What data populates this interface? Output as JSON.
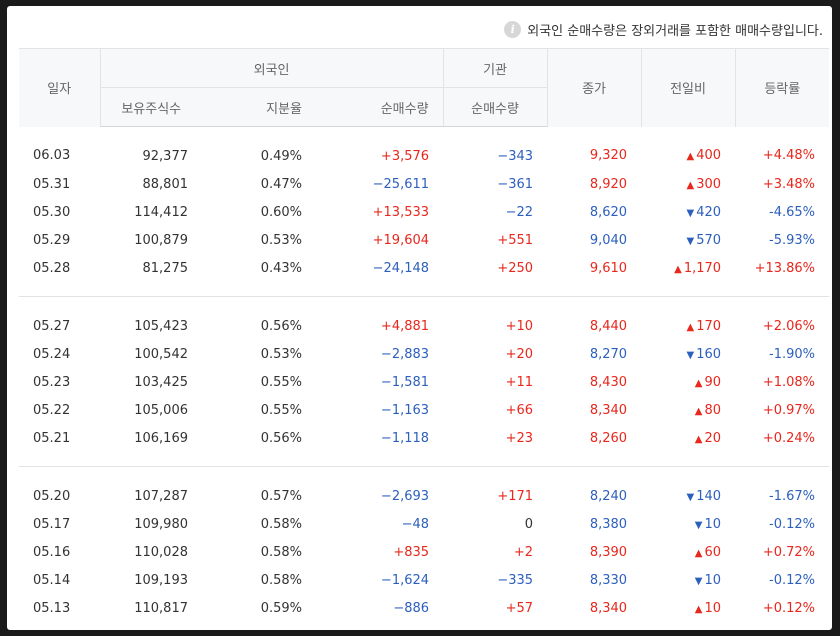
{
  "notice": {
    "icon": "info-icon",
    "text": "외국인 순매수량은 장외거래를 포함한 매매수량입니다."
  },
  "headers": {
    "date": "일자",
    "foreign": "외국인",
    "institution": "기관",
    "close": "종가",
    "change": "전일비",
    "rate": "등락률",
    "holdings": "보유주식수",
    "ratio": "지분율",
    "foreign_net": "순매수량",
    "inst_net": "순매수량"
  },
  "colors": {
    "up": "#e8271d",
    "down": "#2d5fbd"
  },
  "groups": [
    [
      {
        "date": "06.03",
        "holdings": "92,377",
        "ratio": "0.49%",
        "foreign_net": "+3,576",
        "inst_net": "−343",
        "close": "9,320",
        "change": "400",
        "dir": "up",
        "rate": "+4.48%"
      },
      {
        "date": "05.31",
        "holdings": "88,801",
        "ratio": "0.47%",
        "foreign_net": "−25,611",
        "inst_net": "−361",
        "close": "8,920",
        "change": "300",
        "dir": "up",
        "rate": "+3.48%"
      },
      {
        "date": "05.30",
        "holdings": "114,412",
        "ratio": "0.60%",
        "foreign_net": "+13,533",
        "inst_net": "−22",
        "close": "8,620",
        "change": "420",
        "dir": "down",
        "rate": "-4.65%"
      },
      {
        "date": "05.29",
        "holdings": "100,879",
        "ratio": "0.53%",
        "foreign_net": "+19,604",
        "inst_net": "+551",
        "close": "9,040",
        "change": "570",
        "dir": "down",
        "rate": "-5.93%"
      },
      {
        "date": "05.28",
        "holdings": "81,275",
        "ratio": "0.43%",
        "foreign_net": "−24,148",
        "inst_net": "+250",
        "close": "9,610",
        "change": "1,170",
        "dir": "up",
        "rate": "+13.86%"
      }
    ],
    [
      {
        "date": "05.27",
        "holdings": "105,423",
        "ratio": "0.56%",
        "foreign_net": "+4,881",
        "inst_net": "+10",
        "close": "8,440",
        "change": "170",
        "dir": "up",
        "rate": "+2.06%"
      },
      {
        "date": "05.24",
        "holdings": "100,542",
        "ratio": "0.53%",
        "foreign_net": "−2,883",
        "inst_net": "+20",
        "close": "8,270",
        "change": "160",
        "dir": "down",
        "rate": "-1.90%"
      },
      {
        "date": "05.23",
        "holdings": "103,425",
        "ratio": "0.55%",
        "foreign_net": "−1,581",
        "inst_net": "+11",
        "close": "8,430",
        "change": "90",
        "dir": "up",
        "rate": "+1.08%"
      },
      {
        "date": "05.22",
        "holdings": "105,006",
        "ratio": "0.55%",
        "foreign_net": "−1,163",
        "inst_net": "+66",
        "close": "8,340",
        "change": "80",
        "dir": "up",
        "rate": "+0.97%"
      },
      {
        "date": "05.21",
        "holdings": "106,169",
        "ratio": "0.56%",
        "foreign_net": "−1,118",
        "inst_net": "+23",
        "close": "8,260",
        "change": "20",
        "dir": "up",
        "rate": "+0.24%"
      }
    ],
    [
      {
        "date": "05.20",
        "holdings": "107,287",
        "ratio": "0.57%",
        "foreign_net": "−2,693",
        "inst_net": "+171",
        "close": "8,240",
        "change": "140",
        "dir": "down",
        "rate": "-1.67%"
      },
      {
        "date": "05.17",
        "holdings": "109,980",
        "ratio": "0.58%",
        "foreign_net": "−48",
        "inst_net": "0",
        "close": "8,380",
        "change": "10",
        "dir": "down",
        "rate": "-0.12%"
      },
      {
        "date": "05.16",
        "holdings": "110,028",
        "ratio": "0.58%",
        "foreign_net": "+835",
        "inst_net": "+2",
        "close": "8,390",
        "change": "60",
        "dir": "up",
        "rate": "+0.72%"
      },
      {
        "date": "05.14",
        "holdings": "109,193",
        "ratio": "0.58%",
        "foreign_net": "−1,624",
        "inst_net": "−335",
        "close": "8,330",
        "change": "10",
        "dir": "down",
        "rate": "-0.12%"
      },
      {
        "date": "05.13",
        "holdings": "110,817",
        "ratio": "0.59%",
        "foreign_net": "−886",
        "inst_net": "+57",
        "close": "8,340",
        "change": "10",
        "dir": "up",
        "rate": "+0.12%"
      }
    ]
  ]
}
